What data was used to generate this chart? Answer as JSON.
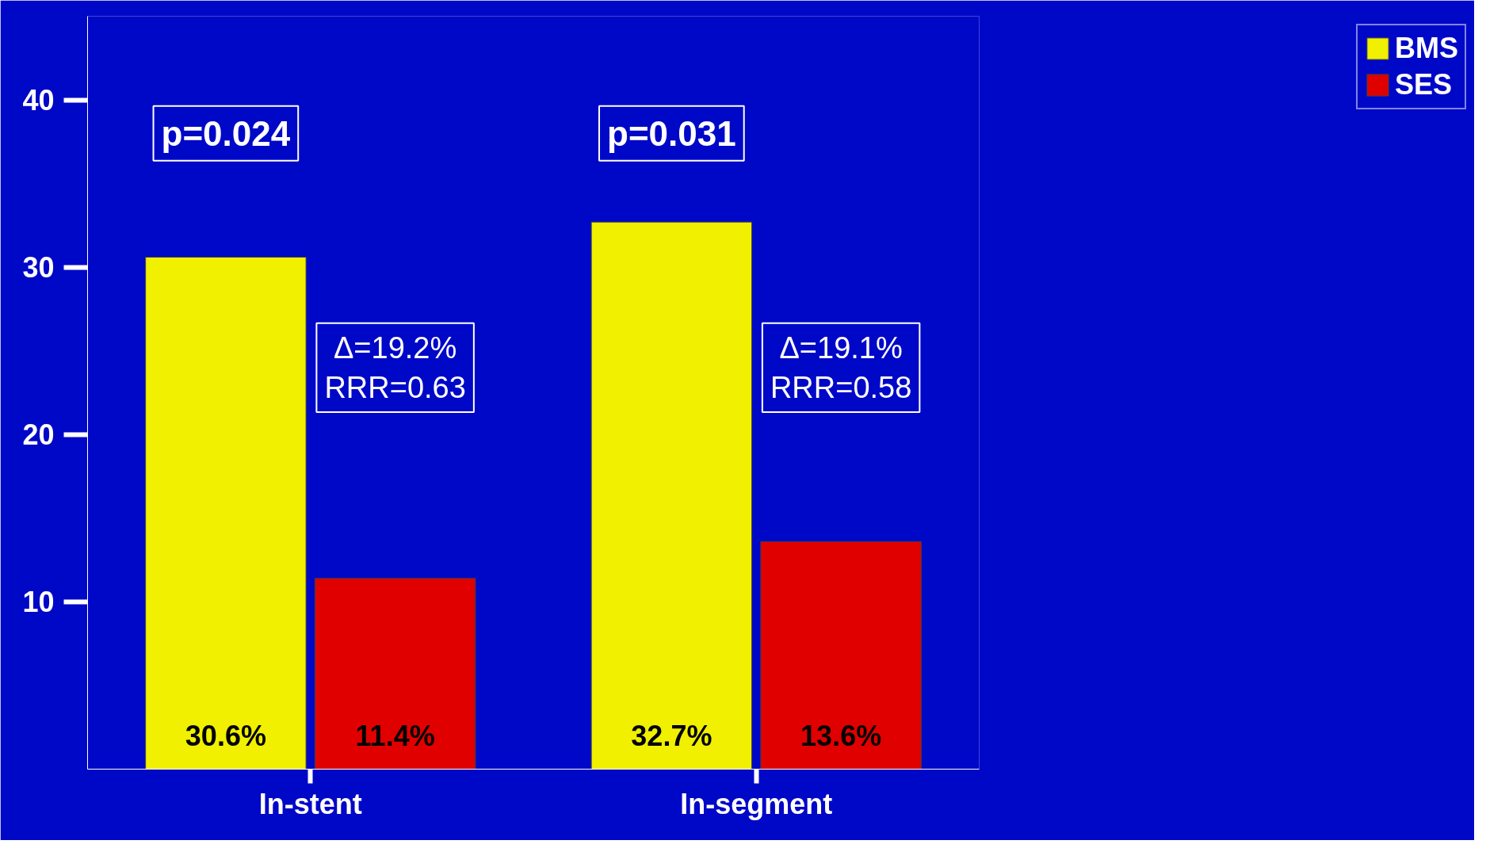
{
  "chart_data": {
    "type": "bar",
    "categories": [
      "In-stent",
      "In-segment"
    ],
    "series": [
      {
        "name": "BMS",
        "color": "#f0f000",
        "values": [
          30.6,
          32.7
        ],
        "value_labels": [
          "30.6%",
          "32.7%"
        ]
      },
      {
        "name": "SES",
        "color": "#e00000",
        "values": [
          11.4,
          13.6
        ],
        "value_labels": [
          "11.4%",
          "13.6%"
        ]
      }
    ],
    "ylim": [
      0,
      45
    ],
    "yticks": [
      10,
      20,
      30,
      40
    ],
    "grid": false,
    "legend": "top right",
    "annotations": [
      "p=0.024",
      "Δ=19.2%\nRRR=0.63",
      "p=0.031",
      "Δ=19.1%\nRRR=0.58"
    ]
  }
}
